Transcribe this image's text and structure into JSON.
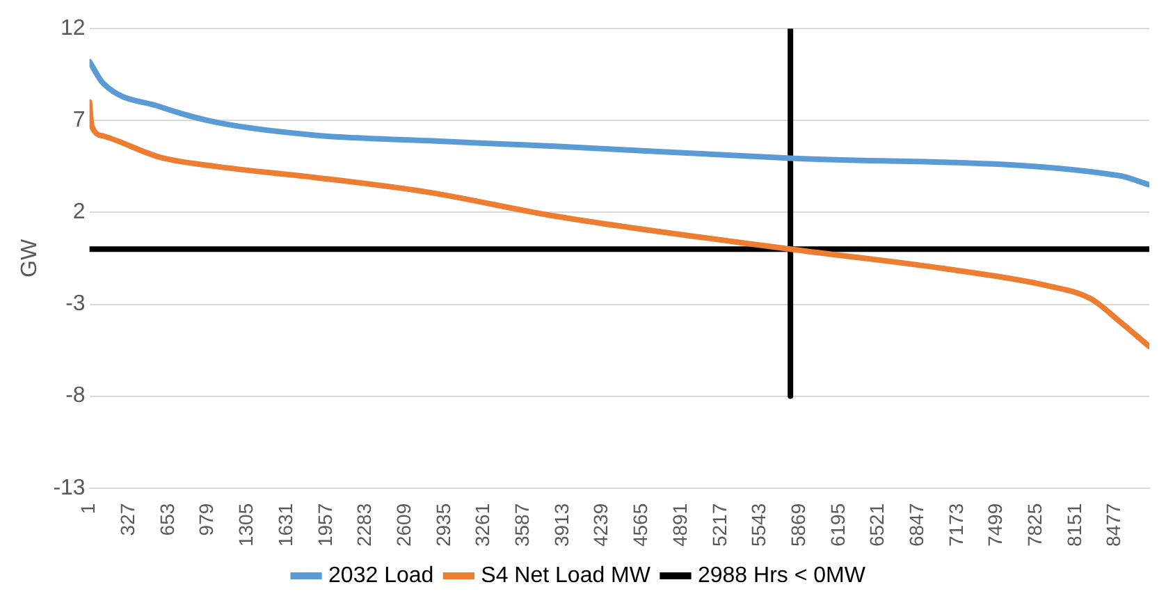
{
  "chart_data": {
    "type": "line",
    "ylabel": "GW",
    "xlim": [
      1,
      8760
    ],
    "xticks": [
      1,
      327,
      653,
      979,
      1305,
      1631,
      1957,
      2283,
      2609,
      2935,
      3261,
      3587,
      3913,
      4239,
      4565,
      4891,
      5217,
      5543,
      5869,
      6195,
      6521,
      6847,
      7173,
      7499,
      7825,
      8151,
      8477
    ],
    "ylim": [
      -13,
      12
    ],
    "yticks": [
      -13,
      -8,
      -3,
      2,
      7,
      12
    ],
    "grid": "y",
    "legend": "bottom",
    "marker": "none",
    "series": [
      {
        "name": "2032 Load",
        "color": "#5b9bd5",
        "x": [
          1,
          118,
          584,
          1050,
          1866,
          2798,
          3847,
          5794,
          8509,
          8760
        ],
        "values": [
          10.2,
          9.0,
          7.75,
          6.9,
          6.2,
          5.9,
          5.6,
          4.95,
          4.0,
          3.5
        ]
      },
      {
        "name": "S4 Net Load MW",
        "color": "#ed7d31",
        "x": [
          1,
          20,
          118,
          584,
          1050,
          1866,
          2798,
          3847,
          5794,
          7110,
          7926,
          8276,
          8509,
          8760
        ],
        "values": [
          8.0,
          6.7,
          6.15,
          5.0,
          4.5,
          3.9,
          3.1,
          1.8,
          0,
          -1.1,
          -2.0,
          -2.7,
          -3.9,
          -5.3
        ]
      },
      {
        "name": "2988 Hrs < 0MW",
        "color": "#000000",
        "x": [
          1,
          8760
        ],
        "values": [
          0,
          0
        ]
      },
      {
        "color": "#000000",
        "x": [
          5794,
          5794
        ],
        "values": [
          -8,
          12
        ]
      }
    ]
  }
}
